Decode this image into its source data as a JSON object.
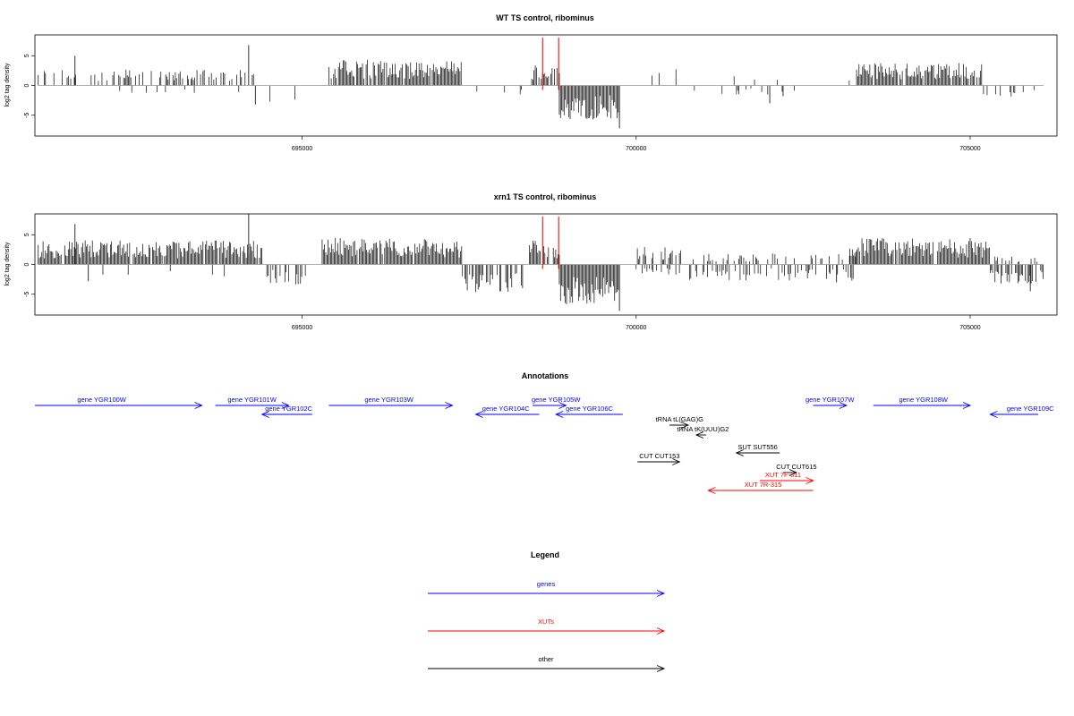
{
  "colors": {
    "gene": "#0000ff",
    "xut": "#ff0000",
    "other": "#000000",
    "marker": "#e00000",
    "baseline": "#999999"
  },
  "axis": {
    "xlim": [
      691000,
      706300
    ],
    "ticks": [
      695000,
      700000,
      705000
    ],
    "tick_labels": [
      "695000",
      "700000",
      "705000"
    ]
  },
  "chart_data": [
    {
      "type": "bar",
      "title": "WT TS control, ribominus",
      "ylabel": "log2 tag density",
      "ylim": [
        -8.5,
        8.5
      ],
      "yticks": [
        -5,
        0,
        5
      ],
      "ytick_labels": [
        "-5",
        "0",
        "5"
      ],
      "marker_lines_x": [
        698600,
        698840
      ],
      "segments": [
        {
          "start": 691050,
          "end": 694300,
          "sign": 1,
          "amp": 2.0,
          "density": 0.35
        },
        {
          "start": 692000,
          "end": 694300,
          "sign": -1,
          "amp": 1.0,
          "density": 0.04
        },
        {
          "start": 694300,
          "end": 695400,
          "sign": -1,
          "amp": 2.5,
          "density": 0.05
        },
        {
          "start": 695400,
          "end": 697400,
          "sign": 1,
          "amp": 3.2,
          "density": 0.9
        },
        {
          "start": 697400,
          "end": 698300,
          "sign": -1,
          "amp": 1.5,
          "density": 0.1
        },
        {
          "start": 698400,
          "end": 698850,
          "sign": 1,
          "amp": 2.5,
          "density": 0.6
        },
        {
          "start": 698850,
          "end": 699750,
          "sign": -1,
          "amp": 4.5,
          "density": 1.0
        },
        {
          "start": 700200,
          "end": 700700,
          "sign": 1,
          "amp": 2.5,
          "density": 0.1
        },
        {
          "start": 700800,
          "end": 702500,
          "sign": -1,
          "amp": 1.2,
          "density": 0.05
        },
        {
          "start": 700800,
          "end": 702500,
          "sign": 1,
          "amp": 1.2,
          "density": 0.03
        },
        {
          "start": 703100,
          "end": 703300,
          "sign": 1,
          "amp": 1.5,
          "density": 0.1
        },
        {
          "start": 703300,
          "end": 705200,
          "sign": 1,
          "amp": 2.8,
          "density": 0.9
        },
        {
          "start": 705200,
          "end": 706000,
          "sign": -1,
          "amp": 1.5,
          "density": 0.2
        }
      ],
      "spikes": [
        {
          "x": 691600,
          "y": 5.0
        },
        {
          "x": 694200,
          "y": 6.8
        },
        {
          "x": 694300,
          "y": -3.2
        },
        {
          "x": 699750,
          "y": -7.2
        },
        {
          "x": 702000,
          "y": -3.0
        },
        {
          "x": 702200,
          "y": -1.8
        }
      ]
    },
    {
      "type": "bar",
      "title": "xrn1 TS control, ribominus",
      "ylabel": "log2 tag density",
      "ylim": [
        -8.5,
        8.5
      ],
      "yticks": [
        -5,
        0,
        5
      ],
      "ytick_labels": [
        "-5",
        "0",
        "5"
      ],
      "marker_lines_x": [
        698600,
        698840
      ],
      "segments": [
        {
          "start": 691050,
          "end": 694400,
          "sign": 1,
          "amp": 3.0,
          "density": 0.95
        },
        {
          "start": 692000,
          "end": 694300,
          "sign": -1,
          "amp": 1.5,
          "density": 0.05
        },
        {
          "start": 694400,
          "end": 695100,
          "sign": -1,
          "amp": 2.5,
          "density": 0.5
        },
        {
          "start": 695300,
          "end": 697400,
          "sign": 1,
          "amp": 3.3,
          "density": 0.95
        },
        {
          "start": 697400,
          "end": 698300,
          "sign": -1,
          "amp": 3.5,
          "density": 0.7
        },
        {
          "start": 698400,
          "end": 698850,
          "sign": 1,
          "amp": 3.0,
          "density": 0.8
        },
        {
          "start": 698850,
          "end": 699750,
          "sign": -1,
          "amp": 5.0,
          "density": 1.0
        },
        {
          "start": 700000,
          "end": 700700,
          "sign": 1,
          "amp": 2.2,
          "density": 0.5
        },
        {
          "start": 700000,
          "end": 700700,
          "sign": -1,
          "amp": 1.5,
          "density": 0.3
        },
        {
          "start": 700800,
          "end": 703300,
          "sign": -1,
          "amp": 2.0,
          "density": 0.4
        },
        {
          "start": 700800,
          "end": 703300,
          "sign": 1,
          "amp": 1.4,
          "density": 0.3
        },
        {
          "start": 703200,
          "end": 705300,
          "sign": 1,
          "amp": 3.3,
          "density": 0.95
        },
        {
          "start": 705300,
          "end": 706100,
          "sign": -1,
          "amp": 2.4,
          "density": 0.6
        },
        {
          "start": 705300,
          "end": 706100,
          "sign": 1,
          "amp": 1.0,
          "density": 0.3
        }
      ],
      "spikes": [
        {
          "x": 691600,
          "y": 6.8
        },
        {
          "x": 694200,
          "y": 8.5
        },
        {
          "x": 699750,
          "y": -7.8
        },
        {
          "x": 691800,
          "y": -2.8
        },
        {
          "x": 703000,
          "y": -3.0
        },
        {
          "x": 705900,
          "y": -4.5
        }
      ]
    }
  ],
  "annotations": {
    "title": "Annotations",
    "features": [
      {
        "label": "gene YGR100W",
        "type": "gene",
        "start": 691000,
        "end": 693500,
        "dir": "+",
        "row": 0,
        "label_x": 692000
      },
      {
        "label": "gene YGR101W",
        "type": "gene",
        "start": 693700,
        "end": 694800,
        "dir": "+",
        "row": 0,
        "label_x": 694250
      },
      {
        "label": "gene YGR102C",
        "type": "gene",
        "start": 694400,
        "end": 695150,
        "dir": "-",
        "row": 1,
        "label_x": 694800
      },
      {
        "label": "gene YGR103W",
        "type": "gene",
        "start": 695400,
        "end": 697250,
        "dir": "+",
        "row": 0,
        "label_x": 696300
      },
      {
        "label": "gene YGR104C",
        "type": "gene",
        "start": 697600,
        "end": 698550,
        "dir": "-",
        "row": 1,
        "label_x": 698050
      },
      {
        "label": "gene YGR105W",
        "type": "gene",
        "start": 698450,
        "end": 698950,
        "dir": "+",
        "row": 0,
        "label_x": 698800
      },
      {
        "label": "gene YGR106C",
        "type": "gene",
        "start": 698800,
        "end": 699800,
        "dir": "-",
        "row": 1,
        "label_x": 699300
      },
      {
        "label": "tRNA tL(GAG)G",
        "type": "other",
        "start": 700500,
        "end": 700780,
        "dir": "+",
        "row": 2,
        "label_x": 700650
      },
      {
        "label": "tRNA tK(UUU)G2",
        "type": "other",
        "start": 700900,
        "end": 701050,
        "dir": "-",
        "row": 3,
        "label_x": 701000
      },
      {
        "label": "SUT SUT556",
        "type": "other",
        "start": 701500,
        "end": 702150,
        "dir": "-",
        "row": 4,
        "label_x": 701820
      },
      {
        "label": "CUT CUT153",
        "type": "other",
        "start": 700020,
        "end": 700650,
        "dir": "+",
        "row": 5,
        "label_x": 700350
      },
      {
        "label": "CUT CUT615",
        "type": "other",
        "start": 702200,
        "end": 702400,
        "dir": "+",
        "row": 6,
        "label_x": 702400
      },
      {
        "label": "XUT 7F-311",
        "type": "xut",
        "start": 701850,
        "end": 702650,
        "dir": "+",
        "row": 7,
        "label_x": 702200
      },
      {
        "label": "XUT 7R-315",
        "type": "xut",
        "start": 701080,
        "end": 702650,
        "dir": "-",
        "row": 8,
        "label_x": 701900
      },
      {
        "label": "gene YGR107W",
        "type": "gene",
        "start": 702650,
        "end": 703150,
        "dir": "+",
        "row": 0,
        "label_x": 702900
      },
      {
        "label": "gene YGR108W",
        "type": "gene",
        "start": 703550,
        "end": 705000,
        "dir": "+",
        "row": 0,
        "label_x": 704300
      },
      {
        "label": "gene YGR109C",
        "type": "gene",
        "start": 705300,
        "end": 706450,
        "dir": "-",
        "row": 1,
        "label_x": 705900
      }
    ]
  },
  "legend": {
    "title": "Legend",
    "items": [
      {
        "label": "genes",
        "type": "gene"
      },
      {
        "label": "XUTs",
        "type": "xut"
      },
      {
        "label": "other",
        "type": "other"
      }
    ]
  }
}
